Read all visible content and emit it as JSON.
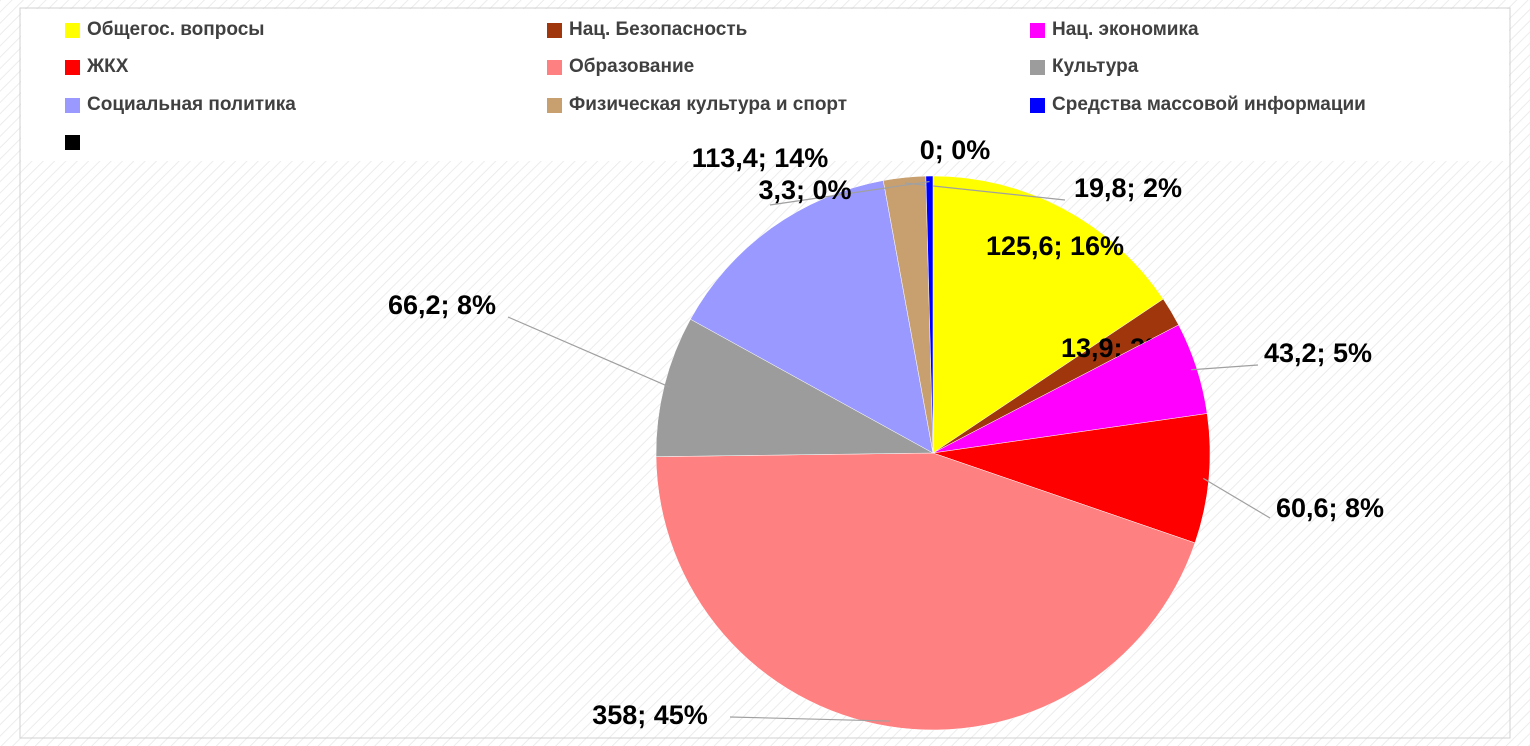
{
  "chart_data": {
    "type": "pie",
    "categories": [
      "Общегос. вопросы",
      "Нац. Безопасность",
      "Нац. экономика",
      "ЖКХ",
      "Образование",
      "Культура",
      "Социальная политика",
      "Физическая культура и спорт",
      "Средства массовой информации",
      null
    ],
    "values": [
      125.6,
      13.9,
      43.2,
      60.6,
      358,
      66.2,
      113.4,
      19.8,
      3.3,
      0
    ],
    "value_labels": [
      "125,6; 16%",
      "13,9; 2%",
      "43,2; 5%",
      "60,6; 8%",
      "358; 45%",
      "66,2; 8%",
      "113,4; 14%",
      "19,8; 2%",
      "3,3; 0%",
      "0; 0%"
    ],
    "colors": [
      "#ffff00",
      "#a0360c",
      "#ff00ff",
      "#ff0000",
      "#ff8080",
      "#9c9c9c",
      "#9999ff",
      "#c8a070",
      "#0000ff",
      "#000000"
    ],
    "legend": "top"
  }
}
